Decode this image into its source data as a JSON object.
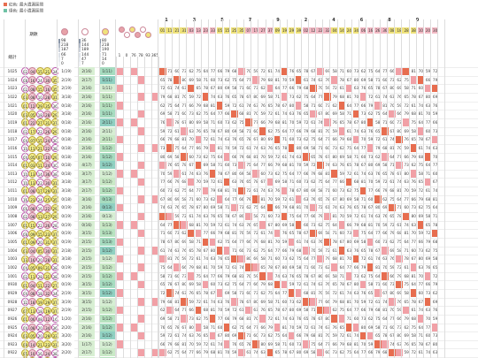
{
  "legend": [
    {
      "label": "紅色: 最大遺漏區間",
      "color": "#e76d4f"
    },
    {
      "label": "綠色: 最小遺漏區間",
      "color": "#6ec2a5"
    }
  ],
  "header": {
    "period_label": "期數",
    "total_label": "總計",
    "stat_col1": [
      "98",
      "218",
      "187",
      "66",
      "7",
      "0"
    ],
    "stat_col2": [
      "36",
      "144",
      "189",
      "144",
      "47",
      "7"
    ],
    "stat_col3": [
      "80",
      "218",
      "190",
      "71",
      "14",
      "0"
    ],
    "counts_row": [
      "1",
      "0",
      "76",
      "78",
      "93",
      "365"
    ],
    "top_digits": [
      "1",
      "3",
      "5",
      "7",
      "9",
      "2",
      "4",
      "6",
      "8",
      "0"
    ],
    "num_labels": [
      "01",
      "11",
      "21",
      "31",
      "03",
      "13",
      "23",
      "33",
      "05",
      "15",
      "25",
      "35",
      "07",
      "17",
      "27",
      "37",
      "09",
      "19",
      "29",
      "39",
      "02",
      "12",
      "22",
      "32",
      "04",
      "14",
      "24",
      "34",
      "06",
      "16",
      "26",
      "36",
      "08",
      "18",
      "28",
      "38",
      "10",
      "20",
      "30"
    ]
  },
  "rows": [
    {
      "period": "1025",
      "balls": [
        "02",
        "04",
        "15",
        "21",
        "34"
      ],
      "a": "1(19)",
      "b": "2(16)",
      "c": "1(11)"
    },
    {
      "period": "1024",
      "balls": [
        "08",
        "16",
        "24",
        "30",
        "35"
      ],
      "a": "2(19)",
      "b": "2(17)",
      "c": "1(11)"
    },
    {
      "period": "1023",
      "balls": [
        "02",
        "08",
        "15",
        "16",
        "35"
      ],
      "a": "2(19)",
      "b": "2(16)",
      "c": "1(11)"
    },
    {
      "period": "1022",
      "balls": [
        "03",
        "08",
        "10",
        "28",
        "31"
      ],
      "a": "3(18)",
      "b": "2(16)",
      "c": "1(11)"
    },
    {
      "period": "1021",
      "balls": [
        "01",
        "12",
        "29",
        "35",
        "36"
      ],
      "a": "0(18)",
      "b": "2(16)",
      "c": "1(11)"
    },
    {
      "period": "1020",
      "balls": [
        "03",
        "05",
        "18",
        "28",
        "29"
      ],
      "a": "3(18)",
      "b": "2(16)",
      "c": "1(11)"
    },
    {
      "period": "1019",
      "balls": [
        "01",
        "22",
        "27",
        "31",
        "37"
      ],
      "a": "0(18)",
      "b": "2(16)",
      "c": "2(11)"
    },
    {
      "period": "1018",
      "balls": [
        "02",
        "17",
        "22",
        "26",
        "29"
      ],
      "a": "0(18)",
      "b": "2(16)",
      "c": "2(11)"
    },
    {
      "period": "1017",
      "balls": [
        "04",
        "07",
        "15",
        "24",
        "30"
      ],
      "a": "0(18)",
      "b": "2(16)",
      "c": "2(11)"
    },
    {
      "period": "1016",
      "balls": [
        "10",
        "11",
        "21",
        "22",
        "38"
      ],
      "a": "0(18)",
      "b": "2(16)",
      "c": "1(12)"
    },
    {
      "period": "1015",
      "balls": [
        "04",
        "05",
        "07",
        "10",
        "29"
      ],
      "a": "0(18)",
      "b": "2(16)",
      "c": "1(12)"
    },
    {
      "period": "1014",
      "balls": [
        "01",
        "03",
        "11",
        "24",
        "30"
      ],
      "a": "0(18)",
      "b": "4(17)",
      "c": "1(12)"
    },
    {
      "period": "1013",
      "balls": [
        "10",
        "13",
        "14",
        "36",
        "38"
      ],
      "a": "0(18)",
      "b": "3(17)",
      "c": "1(12)"
    },
    {
      "period": "1012",
      "balls": [
        "10",
        "13",
        "22",
        "30",
        "31"
      ],
      "a": "3(18)",
      "b": "3(17)",
      "c": "1(12)"
    },
    {
      "period": "1011",
      "balls": [
        "01",
        "08",
        "17",
        "29",
        "31"
      ],
      "a": "3(18)",
      "b": "2(17)",
      "c": "1(12)"
    },
    {
      "period": "1010",
      "balls": [
        "16",
        "23",
        "24",
        "25",
        "35"
      ],
      "a": "0(18)",
      "b": "3(16)",
      "c": "0(13)"
    },
    {
      "period": "1009",
      "balls": [
        "06",
        "08",
        "16",
        "22",
        "29"
      ],
      "a": "0(19)",
      "b": "2(16)",
      "c": "0(13)"
    },
    {
      "period": "1008",
      "balls": [
        "02",
        "08",
        "13",
        "27",
        "29"
      ],
      "a": "0(19)",
      "b": "2(16)",
      "c": "0(13)"
    },
    {
      "period": "1007",
      "balls": [
        "01",
        "15",
        "22",
        "26",
        "28"
      ],
      "a": "0(19)",
      "b": "0(16)",
      "c": "1(13)"
    },
    {
      "period": "1006",
      "balls": [
        "08",
        "09",
        "15",
        "23",
        "37"
      ],
      "a": "0(19)",
      "b": "3(15)",
      "c": "1(13)"
    },
    {
      "period": "1005",
      "balls": [
        "01",
        "09",
        "20",
        "31",
        "37"
      ],
      "a": "0(19)",
      "b": "2(15)",
      "c": "1(13)"
    },
    {
      "period": "1004",
      "balls": [
        "03",
        "04",
        "05",
        "30",
        "31"
      ],
      "a": "2(18)",
      "b": "2(15)",
      "c": "1(12)"
    },
    {
      "period": "1003",
      "balls": [
        "13",
        "16",
        "20",
        "28",
        "31"
      ],
      "a": "3(18)",
      "b": "2(15)",
      "c": "1(12)"
    },
    {
      "period": "1002",
      "balls": [
        "04",
        "05",
        "09",
        "31",
        "38"
      ],
      "a": "0(19)",
      "b": "2(15)",
      "c": "1(12)"
    },
    {
      "period": "1001",
      "balls": [
        "02",
        "11",
        "28",
        "31",
        "38"
      ],
      "a": "0(19)",
      "b": "2(15)",
      "c": "1(12)"
    },
    {
      "period": "0930",
      "balls": [
        "01",
        "04",
        "11",
        "22",
        "27"
      ],
      "a": "0(19)",
      "b": "3(15)",
      "c": "1(12)"
    },
    {
      "period": "0929",
      "balls": [
        "04",
        "08",
        "18",
        "32",
        "34"
      ],
      "a": "2(19)",
      "b": "3(15)",
      "c": "1(12)"
    },
    {
      "period": "0928",
      "balls": [
        "12",
        "18",
        "19",
        "29",
        "37"
      ],
      "a": "3(19)",
      "b": "3(15)",
      "c": "1(12)"
    },
    {
      "period": "0927",
      "balls": [
        "07",
        "13",
        "18",
        "19",
        "37"
      ],
      "a": "2(19)",
      "b": "2(15)",
      "c": "1(12)"
    },
    {
      "period": "0926",
      "balls": [
        "01",
        "06",
        "08",
        "12",
        "16"
      ],
      "a": "1(20)",
      "b": "2(16)",
      "c": "1(12)"
    },
    {
      "period": "0925",
      "balls": [
        "04",
        "08",
        "20",
        "34",
        "36"
      ],
      "a": "2(20)",
      "b": "2(16)",
      "c": "1(12)"
    },
    {
      "period": "0924",
      "balls": [
        "03",
        "05",
        "20",
        "29",
        "33"
      ],
      "a": "3(20)",
      "b": "2(16)",
      "c": "1(12)"
    },
    {
      "period": "0923",
      "balls": [
        "09",
        "14",
        "21",
        "23",
        "31"
      ],
      "a": "3(20)",
      "b": "1(17)",
      "c": "1(12)"
    },
    {
      "period": "0922",
      "balls": [
        "05",
        "10",
        "16",
        "24",
        "38"
      ],
      "a": "2(20)",
      "b": "2(17)",
      "c": "1(12)"
    },
    {
      "period": "0921",
      "balls": [
        "07",
        "17",
        "22",
        "27",
        "36"
      ],
      "a": "2(20)",
      "b": "2(16)",
      "c": "1(12)"
    }
  ]
}
